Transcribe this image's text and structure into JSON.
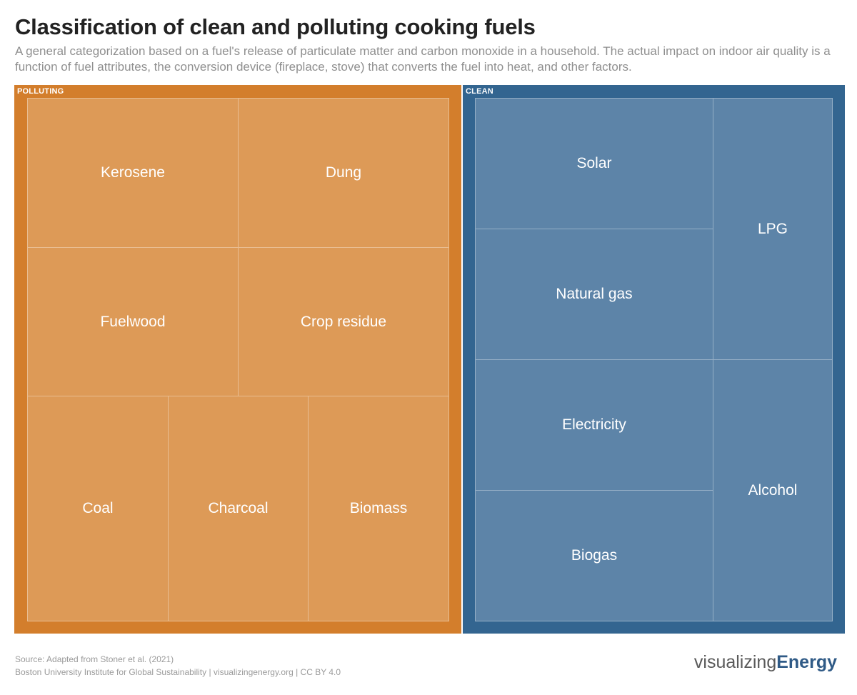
{
  "title": "Classification of clean and polluting cooking fuels",
  "subtitle": "A general categorization based on a fuel's release of particulate matter and carbon monoxide in a household. The actual impact on indoor air quality is a function of fuel attributes, the conversion device (fireplace, stove) that converts the fuel into heat, and other factors.",
  "footer": {
    "source": "Source: Adapted from Stoner et al. (2021)",
    "credit": "Boston University Institute for Global Sustainability | visualizingenergy.org | CC BY 4.0"
  },
  "brand": {
    "light": "visualizing",
    "bold": "Energy"
  },
  "colors": {
    "polluting_group": "#d37e2c",
    "polluting_cell": "#dd9a57",
    "clean_group": "#336590",
    "clean_cell": "#5d84a8"
  },
  "chart_data": {
    "type": "treemap",
    "groups": [
      {
        "name": "POLLUTING",
        "items": [
          "Kerosene",
          "Dung",
          "Fuelwood",
          "Crop residue",
          "Coal",
          "Charcoal",
          "Biomass"
        ]
      },
      {
        "name": "CLEAN",
        "items": [
          "Solar",
          "Natural gas",
          "Electricity",
          "Biogas",
          "LPG",
          "Alcohol"
        ]
      }
    ]
  }
}
